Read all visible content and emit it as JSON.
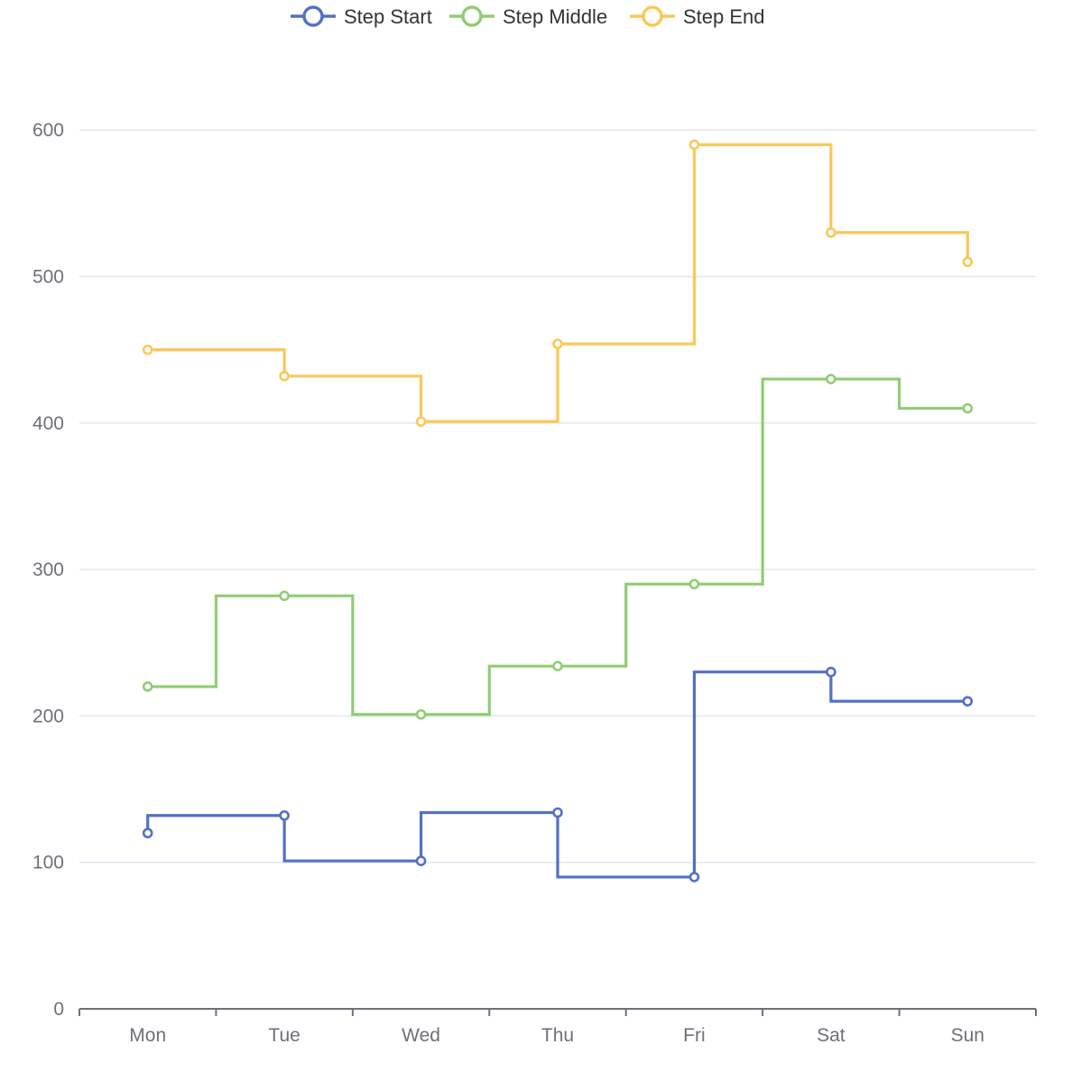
{
  "chart_data": {
    "type": "line",
    "step_chart": true,
    "categories": [
      "Mon",
      "Tue",
      "Wed",
      "Thu",
      "Fri",
      "Sat",
      "Sun"
    ],
    "series": [
      {
        "name": "Step Start",
        "step": "start",
        "color": "#5470c6",
        "values": [
          120,
          132,
          101,
          134,
          90,
          230,
          210
        ]
      },
      {
        "name": "Step Middle",
        "step": "middle",
        "color": "#91cc75",
        "values": [
          220,
          282,
          201,
          234,
          290,
          430,
          410
        ]
      },
      {
        "name": "Step End",
        "step": "end",
        "color": "#fac858",
        "values": [
          450,
          432,
          401,
          454,
          590,
          530,
          510
        ]
      }
    ],
    "y_ticks": [
      0,
      100,
      200,
      300,
      400,
      500,
      600
    ],
    "ylim": [
      0,
      650
    ],
    "grid": true,
    "legend_position": "top-center",
    "title": "",
    "xlabel": "",
    "ylabel": ""
  }
}
